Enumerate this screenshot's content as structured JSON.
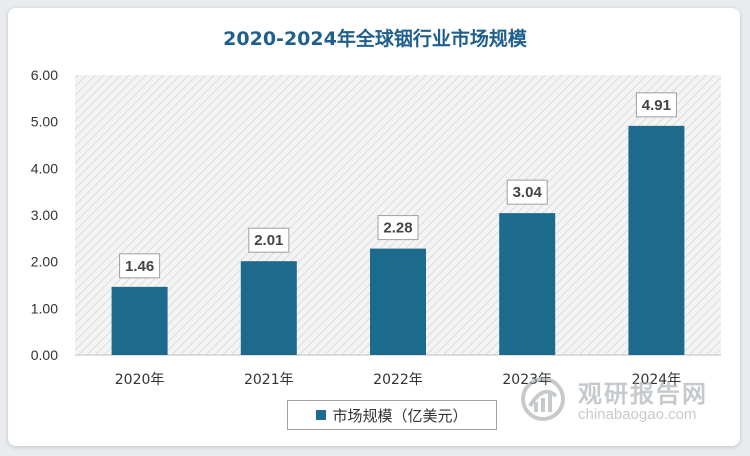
{
  "chart_data": {
    "type": "bar",
    "title": "2020-2024年全球铟行业市场规模",
    "categories": [
      "2020年",
      "2021年",
      "2022年",
      "2023年",
      "2024年"
    ],
    "series": [
      {
        "name": "市场规模（亿美元）",
        "values": [
          1.46,
          2.01,
          2.28,
          3.04,
          4.91
        ]
      }
    ],
    "ylim": [
      0,
      6
    ],
    "yticks": [
      "0.00",
      "1.00",
      "2.00",
      "3.00",
      "4.00",
      "5.00",
      "6.00"
    ],
    "data_labels": [
      "1.46",
      "2.01",
      "2.28",
      "3.04",
      "4.91"
    ],
    "grid": false,
    "legend": "bottom",
    "bar_color": "#1c6b8d"
  },
  "watermark": {
    "text_cn": "观研报告网",
    "text_en": "chinabaogao.com"
  }
}
